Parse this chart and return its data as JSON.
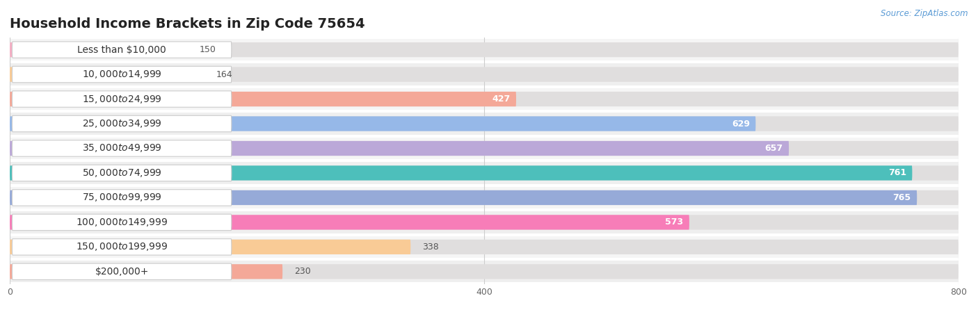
{
  "title": "Household Income Brackets in Zip Code 75654",
  "source": "Source: ZipAtlas.com",
  "categories": [
    "Less than $10,000",
    "$10,000 to $14,999",
    "$15,000 to $24,999",
    "$25,000 to $34,999",
    "$35,000 to $49,999",
    "$50,000 to $74,999",
    "$75,000 to $99,999",
    "$100,000 to $149,999",
    "$150,000 to $199,999",
    "$200,000+"
  ],
  "values": [
    150,
    164,
    427,
    629,
    657,
    761,
    765,
    573,
    338,
    230
  ],
  "bar_colors": [
    "#f5aec4",
    "#f9cb96",
    "#f4a898",
    "#96b8e8",
    "#bba8d8",
    "#4dbfbb",
    "#96aad8",
    "#f77db8",
    "#f9cb96",
    "#f4a898"
  ],
  "row_colors": [
    "#f5f5f5",
    "#efefef"
  ],
  "xlim": [
    0,
    800
  ],
  "xticks": [
    0,
    400,
    800
  ],
  "title_fontsize": 14,
  "label_fontsize": 10,
  "value_fontsize": 9,
  "bar_height": 0.6,
  "pill_color": "#ffffff",
  "pill_border": "#dddddd"
}
